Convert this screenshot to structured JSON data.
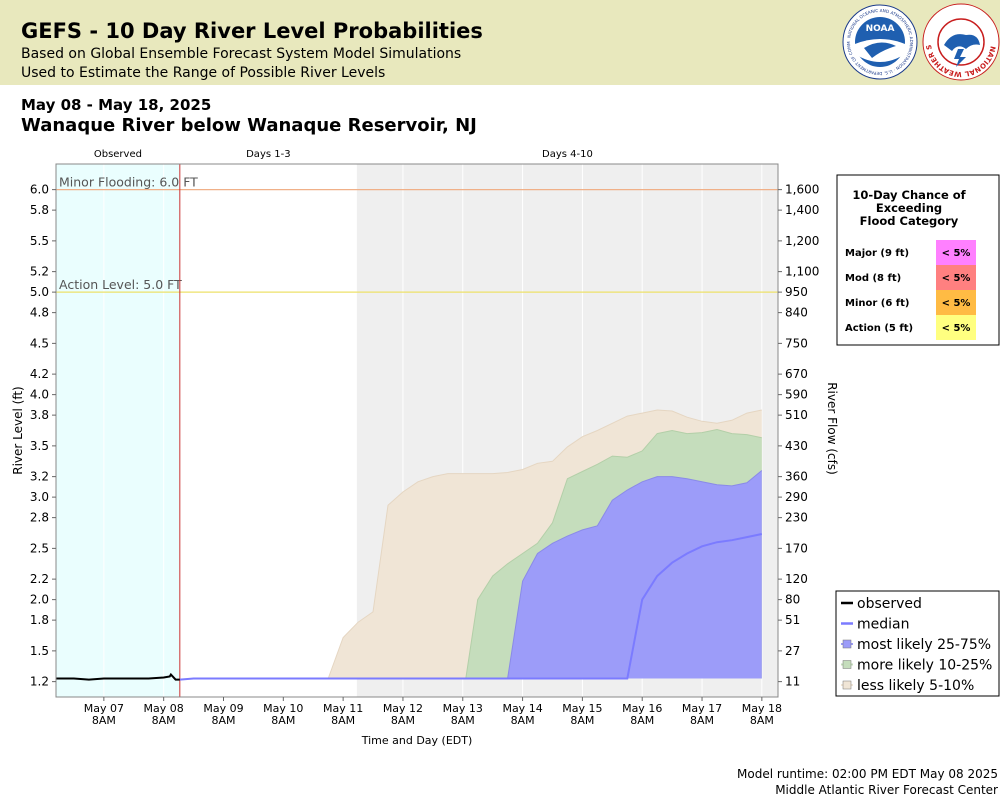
{
  "header": {
    "title": "GEFS - 10 Day River Level Probabilities",
    "subtitle1": "Based on Global Ensemble Forecast System Model Simulations",
    "subtitle2": "Used to Estimate the Range of Possible River Levels",
    "noaa_logo_text": "NOAA",
    "noaa_ring_text": "NATIONAL OCEANIC AND ATMOSPHERIC ADMINISTRATION · U.S. DEPARTMENT OF COMMERCE",
    "nws_ring_text": "NATIONAL WEATHER SERVICE"
  },
  "date_range": "May 08 - May 18, 2025",
  "station": "Wanaque River below Wanaque Reservoir, NJ",
  "footer": {
    "runtime": "Model runtime: 02:00 PM EDT May 08 2025",
    "center": "Middle Atlantic River Forecast Center"
  },
  "colors": {
    "observed_bg": "#eafefe",
    "forecast_bg": "#efefef",
    "observed_line": "#000000",
    "median_line": "#7b7bff",
    "band_25_75": "#9c9cf9",
    "band_10_25": "#c5ddbc",
    "band_5_10": "#f0e5d6",
    "minor_line": "#f0b088",
    "action_line": "#ede26a",
    "now_line": "#cc3333",
    "major_cell": "#ff80ff",
    "mod_cell": "#ff8080",
    "minor_cell": "#ffbb44",
    "action_cell": "#ffff80"
  },
  "chart_data": {
    "type": "area",
    "period_labels": [
      "Observed",
      "Days 1-3",
      "Days 4-10"
    ],
    "xlabel": "Time and Day (EDT)",
    "ylabel": "River Level (ft)",
    "ylabel_right": "River Flow (cfs)",
    "x_ticks": [
      {
        "day": 1,
        "label": "May 07",
        "time": "8AM"
      },
      {
        "day": 2,
        "label": "May 08",
        "time": "8AM"
      },
      {
        "day": 3,
        "label": "May 09",
        "time": "8AM"
      },
      {
        "day": 4,
        "label": "May 10",
        "time": "8AM"
      },
      {
        "day": 5,
        "label": "May 11",
        "time": "8AM"
      },
      {
        "day": 6,
        "label": "May 12",
        "time": "8AM"
      },
      {
        "day": 7,
        "label": "May 13",
        "time": "8AM"
      },
      {
        "day": 8,
        "label": "May 14",
        "time": "8AM"
      },
      {
        "day": 9,
        "label": "May 15",
        "time": "8AM"
      },
      {
        "day": 10,
        "label": "May 16",
        "time": "8AM"
      },
      {
        "day": 11,
        "label": "May 17",
        "time": "8AM"
      },
      {
        "day": 12,
        "label": "May 18",
        "time": "8AM"
      }
    ],
    "y_ticks": [
      1.2,
      1.5,
      1.8,
      2.0,
      2.2,
      2.5,
      2.8,
      3.0,
      3.2,
      3.5,
      3.8,
      4.0,
      4.2,
      4.5,
      4.8,
      5.0,
      5.2,
      5.5,
      5.8,
      6.0
    ],
    "y_tick_labels": [
      "1.2",
      "1.5",
      "1.8",
      "2.0",
      "2.2",
      "2.5",
      "2.8",
      "3.0",
      "3.2",
      "3.5",
      "3.8",
      "4.0",
      "4.2",
      "4.5",
      "4.8",
      "5.0",
      "5.2",
      "5.5",
      "5.8",
      "6.0"
    ],
    "flow_ticks": [
      "11",
      "27",
      "51",
      "80",
      "120",
      "170",
      "230",
      "290",
      "360",
      "430",
      "510",
      "590",
      "670",
      "750",
      "840",
      "950",
      "1,100",
      "1,200",
      "1,400",
      "1,600"
    ],
    "ylim": [
      1.05,
      6.25
    ],
    "xlim": [
      0.2,
      12.27
    ],
    "observed_end": 2.27,
    "days13_end": 5.23,
    "thresholds": [
      {
        "label": "Minor Flooding: 6.0 FT",
        "value": 6.0,
        "color": "#f0b088"
      },
      {
        "label": "Action Level: 5.0 FT",
        "value": 5.0,
        "color": "#ede26a"
      }
    ],
    "series": [
      {
        "name": "observed",
        "x": [
          0.2,
          0.5,
          0.75,
          1.0,
          1.25,
          1.5,
          1.75,
          2.0,
          2.1,
          2.12,
          2.2,
          2.27
        ],
        "y": [
          1.23,
          1.23,
          1.22,
          1.23,
          1.23,
          1.23,
          1.23,
          1.24,
          1.25,
          1.27,
          1.22,
          1.22
        ]
      },
      {
        "name": "median",
        "x": [
          2.27,
          2.5,
          9.75,
          10.0,
          10.25,
          10.5,
          10.75,
          11.0,
          11.25,
          11.5,
          11.75,
          12.0
        ],
        "y": [
          1.22,
          1.23,
          1.23,
          2.0,
          2.23,
          2.36,
          2.45,
          2.52,
          2.56,
          2.58,
          2.61,
          2.64
        ]
      },
      {
        "name": "most likely 25-75%",
        "x": [
          7.75,
          8.0,
          8.25,
          8.5,
          8.75,
          9.0,
          9.25,
          9.5,
          9.75,
          10.0,
          10.25,
          10.5,
          10.75,
          11.0,
          11.25,
          11.5,
          11.75,
          12.0
        ],
        "lo": [
          1.23,
          1.23,
          1.23,
          1.23,
          1.23,
          1.23,
          1.23,
          1.23,
          1.23,
          1.23,
          1.23,
          1.23,
          1.23,
          1.23,
          1.23,
          1.23,
          1.23,
          1.23
        ],
        "hi": [
          1.23,
          2.18,
          2.45,
          2.55,
          2.62,
          2.68,
          2.72,
          2.97,
          3.07,
          3.15,
          3.2,
          3.2,
          3.18,
          3.15,
          3.12,
          3.11,
          3.14,
          3.26
        ]
      },
      {
        "name": "more likely 10-25%",
        "x": [
          7.05,
          7.25,
          7.5,
          7.75,
          8.0,
          8.25,
          8.5,
          8.75,
          9.0,
          9.25,
          9.5,
          9.75,
          10.0,
          10.25,
          10.5,
          10.75,
          11.0,
          11.25,
          11.5,
          11.75,
          12.0
        ],
        "lo": [
          1.23,
          1.23,
          1.23,
          1.23,
          1.23,
          1.23,
          1.23,
          1.23,
          1.23,
          1.23,
          1.23,
          1.23,
          1.23,
          1.23,
          1.23,
          1.23,
          1.23,
          1.23,
          1.23,
          1.23,
          1.23
        ],
        "hi": [
          1.23,
          2.0,
          2.23,
          2.35,
          2.45,
          2.55,
          2.75,
          3.18,
          3.25,
          3.32,
          3.4,
          3.39,
          3.45,
          3.62,
          3.65,
          3.62,
          3.63,
          3.66,
          3.62,
          3.61,
          3.58
        ]
      },
      {
        "name": "less likely 5-10%",
        "x": [
          4.75,
          5.0,
          5.25,
          5.5,
          5.75,
          6.0,
          6.25,
          6.5,
          6.75,
          7.0,
          7.25,
          7.5,
          7.75,
          8.0,
          8.25,
          8.5,
          8.75,
          9.0,
          9.25,
          9.5,
          9.75,
          10.0,
          10.25,
          10.5,
          10.75,
          11.0,
          11.25,
          11.5,
          11.75,
          12.0
        ],
        "lo": [
          1.23,
          1.23,
          1.23,
          1.23,
          1.23,
          1.23,
          1.23,
          1.23,
          1.23,
          1.23,
          1.23,
          1.23,
          1.23,
          1.23,
          1.23,
          1.23,
          1.23,
          1.23,
          1.23,
          1.23,
          1.23,
          1.23,
          1.23,
          1.23,
          1.23,
          1.23,
          1.23,
          1.23,
          1.23,
          1.23
        ],
        "hi": [
          1.23,
          1.63,
          1.78,
          1.88,
          2.92,
          3.05,
          3.15,
          3.2,
          3.23,
          3.23,
          3.23,
          3.23,
          3.24,
          3.27,
          3.33,
          3.35,
          3.49,
          3.59,
          3.65,
          3.72,
          3.79,
          3.82,
          3.85,
          3.84,
          3.78,
          3.74,
          3.72,
          3.75,
          3.82,
          3.85
        ]
      }
    ],
    "legend": [
      {
        "label": "observed",
        "key": "observed"
      },
      {
        "label": "median",
        "key": "median"
      },
      {
        "label": "most likely 25-75%",
        "key": "band_25_75"
      },
      {
        "label": "more likely 10-25%",
        "key": "band_10_25"
      },
      {
        "label": "less likely 5-10%",
        "key": "band_5_10"
      }
    ],
    "exceed_table": {
      "title_lines": [
        "10-Day Chance of",
        "Exceeding",
        "Flood Category"
      ],
      "rows": [
        {
          "label": "Major (9 ft)",
          "value": "< 5%",
          "color": "#ff80ff"
        },
        {
          "label": "Mod (8 ft)",
          "value": "< 5%",
          "color": "#ff8080"
        },
        {
          "label": "Minor (6 ft)",
          "value": "< 5%",
          "color": "#ffbb44"
        },
        {
          "label": "Action (5 ft)",
          "value": "< 5%",
          "color": "#ffff80"
        }
      ]
    }
  }
}
